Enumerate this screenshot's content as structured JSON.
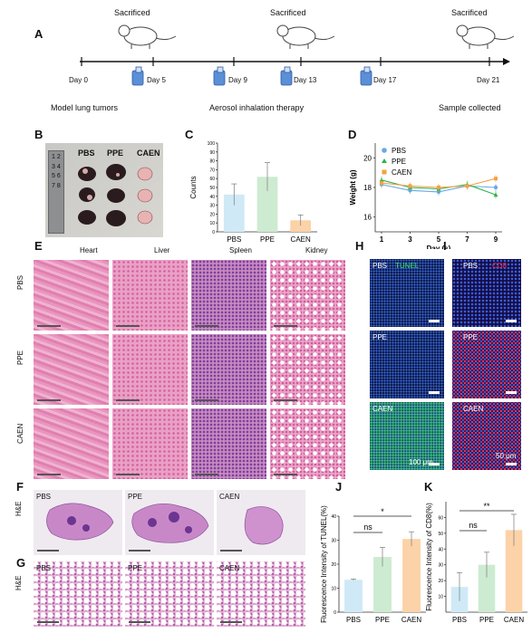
{
  "panelA": {
    "label": "A",
    "sacrificed_labels": [
      "Sacrificed",
      "Sacrificed",
      "Sacrificed"
    ],
    "days": [
      "Day 0",
      "Day 5",
      "Day 9",
      "Day 13",
      "Day 17",
      "Day 21"
    ],
    "captions": [
      "Model lung tumors",
      "Aerosol inhalation therapy",
      "Sample collected"
    ]
  },
  "panelB": {
    "label": "B",
    "groups": [
      "PBS",
      "PPE",
      "CAEN"
    ],
    "ruler_digits": "1 2 3 4 5 6 7 8"
  },
  "panelE": {
    "label": "E",
    "organs": [
      "Heart",
      "Liver",
      "Spleen",
      "Kidney"
    ],
    "rows": [
      "PBS",
      "PPE",
      "CAEN"
    ]
  },
  "panelH": {
    "label": "H",
    "stain": "TUNEL",
    "rows": [
      "PBS",
      "PPE",
      "CAEN"
    ],
    "scale": "100 μm"
  },
  "panelI": {
    "label": "I",
    "stain": "CD8",
    "rows": [
      "PBS",
      "PPE",
      "CAEN"
    ],
    "scale": "50 μm"
  },
  "panelF": {
    "label": "F",
    "side": "H&E",
    "groups": [
      "PBS",
      "PPE",
      "CAEN"
    ]
  },
  "panelG": {
    "label": "G",
    "side": "H&E",
    "groups": [
      "PBS",
      "PPE",
      "CAEN"
    ]
  },
  "colors": {
    "PBS": "#cfe9f7",
    "PPE": "#cdebd0",
    "CAEN": "#fcd2a8",
    "PBS_line": "#6aa8e8",
    "PPE_line": "#2db34a",
    "CAEN_line": "#f5a142"
  },
  "chart_data": [
    {
      "id": "C",
      "type": "bar",
      "label": "C",
      "categories": [
        "PBS",
        "PPE",
        "CAEN"
      ],
      "values": [
        42,
        62,
        13
      ],
      "errors": [
        12,
        16,
        6
      ],
      "ylabel": "Counts",
      "xlabel": "",
      "ylim": [
        0,
        100
      ],
      "yticks": [
        "0",
        "10",
        "20",
        "30",
        "40",
        "50",
        "60",
        "70",
        "80",
        "90",
        "100"
      ]
    },
    {
      "id": "D",
      "type": "line",
      "label": "D",
      "x": [
        1,
        3,
        5,
        7,
        9
      ],
      "series": [
        {
          "name": "PBS",
          "values": [
            18.2,
            17.8,
            17.7,
            18.1,
            18.0
          ]
        },
        {
          "name": "PPE",
          "values": [
            18.5,
            18.0,
            17.9,
            18.2,
            17.5
          ]
        },
        {
          "name": "CAEN",
          "values": [
            18.3,
            18.1,
            18.0,
            18.1,
            18.6
          ]
        }
      ],
      "xlabel": "Day (s)",
      "ylabel": "Weight (g)",
      "ylim": [
        15,
        21
      ],
      "yticks": [
        "16",
        "18",
        "20"
      ]
    },
    {
      "id": "J",
      "type": "bar",
      "label": "J",
      "categories": [
        "PBS",
        "PPE",
        "CAEN"
      ],
      "values": [
        13.5,
        23,
        30.5
      ],
      "errors": [
        0.3,
        4,
        3
      ],
      "ylabel": "Fluorescence Intensity of TUNEL(%)",
      "ylim": [
        0,
        40
      ],
      "yticks": [
        "0",
        "10",
        "20",
        "30",
        "40"
      ],
      "annotations": [
        "ns",
        "*"
      ]
    },
    {
      "id": "K",
      "type": "bar",
      "label": "K",
      "categories": [
        "PBS",
        "PPE",
        "CAEN"
      ],
      "values": [
        16,
        30,
        52
      ],
      "errors": [
        9,
        8,
        10
      ],
      "ylabel": "Fluorescence Intensity of CD8(%)",
      "ylim": [
        0,
        70
      ],
      "yticks": [
        "10",
        "20",
        "30",
        "40",
        "50",
        "60"
      ],
      "annotations": [
        "ns",
        "**"
      ]
    }
  ]
}
